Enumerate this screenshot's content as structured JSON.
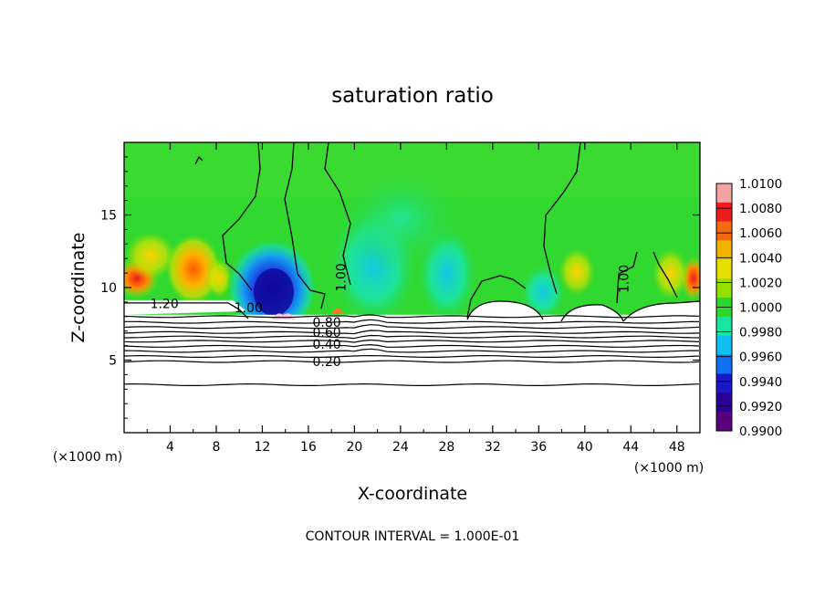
{
  "chart_data": {
    "type": "heatmap",
    "title": "saturation ratio",
    "xlabel": "X-coordinate",
    "ylabel": "Z-coordinate",
    "x_unit_label": "(×1000 m)",
    "x_unit_label_right": "(×1000 m)",
    "footer": "CONTOUR INTERVAL = 1.000E-01",
    "xlim": [
      0,
      50
    ],
    "ylim": [
      0,
      20
    ],
    "x_ticks": [
      4,
      8,
      12,
      16,
      20,
      24,
      28,
      32,
      36,
      40,
      44,
      48
    ],
    "x_tick_labels": [
      "4",
      "8",
      "12",
      "16",
      "20",
      "24",
      "28",
      "32",
      "36",
      "40",
      "44",
      "48"
    ],
    "y_ticks": [
      5,
      10,
      15
    ],
    "y_tick_labels": [
      "5",
      "10",
      "15"
    ],
    "colorbar": {
      "labels": [
        "1.0100",
        "1.0080",
        "1.0060",
        "1.0040",
        "1.0020",
        "1.0000",
        "0.9980",
        "0.9960",
        "0.9940",
        "0.9920",
        "0.9900"
      ],
      "colors": [
        "#f4a3a3",
        "#ee1c1c",
        "#f06a10",
        "#f2b400",
        "#e6e000",
        "#96e000",
        "#2ed62e",
        "#18e6a0",
        "#12c0f0",
        "#1070f0",
        "#1a18c8",
        "#2a0099",
        "#5a007a"
      ]
    },
    "contour_labels": [
      {
        "text": "1.20",
        "x": 3.5,
        "z": 8.6
      },
      {
        "text": "1.00",
        "x": 10.8,
        "z": 8.3
      },
      {
        "text": "1.00",
        "x": 19.2,
        "z": 10.7
      },
      {
        "text": "1.00",
        "x": 43.8,
        "z": 10.6
      },
      {
        "text": "0.80",
        "x": 17.6,
        "z": 7.3
      },
      {
        "text": "0.60",
        "x": 17.6,
        "z": 6.6
      },
      {
        "text": "0.40",
        "x": 17.6,
        "z": 5.8
      },
      {
        "text": "0.20",
        "x": 17.6,
        "z": 4.6
      }
    ],
    "subsaturated_level_z": 8.0,
    "cloud_top_z": 9.0
  }
}
